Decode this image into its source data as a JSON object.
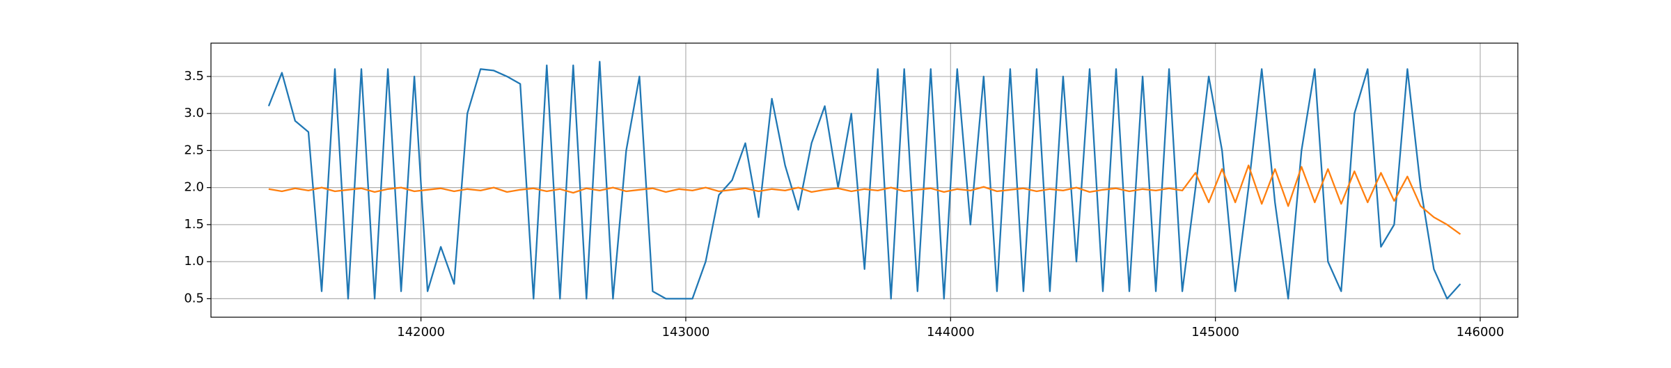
{
  "chart_data": {
    "type": "line",
    "x": [
      141425,
      141475,
      141525,
      141575,
      141625,
      141675,
      141725,
      141775,
      141825,
      141875,
      141925,
      141975,
      142025,
      142075,
      142125,
      142175,
      142225,
      142275,
      142325,
      142375,
      142425,
      142475,
      142525,
      142575,
      142625,
      142675,
      142725,
      142775,
      142825,
      142875,
      142925,
      142975,
      143025,
      143075,
      143125,
      143175,
      143225,
      143275,
      143325,
      143375,
      143425,
      143475,
      143525,
      143575,
      143625,
      143675,
      143725,
      143775,
      143825,
      143875,
      143925,
      143975,
      144025,
      144075,
      144125,
      144175,
      144225,
      144275,
      144325,
      144375,
      144425,
      144475,
      144525,
      144575,
      144625,
      144675,
      144725,
      144775,
      144825,
      144875,
      144925,
      144975,
      145025,
      145075,
      145125,
      145175,
      145225,
      145275,
      145325,
      145375,
      145425,
      145475,
      145525,
      145575,
      145625,
      145675,
      145725,
      145775,
      145825,
      145875,
      145925
    ],
    "series": [
      {
        "color": "#1f77b4",
        "values": [
          3.1,
          3.55,
          2.9,
          2.75,
          0.6,
          3.6,
          0.5,
          3.6,
          0.5,
          3.6,
          0.6,
          3.5,
          0.6,
          1.2,
          0.7,
          3.0,
          3.6,
          3.58,
          3.5,
          3.4,
          0.5,
          3.65,
          0.5,
          3.65,
          0.5,
          3.7,
          0.5,
          2.5,
          3.5,
          0.6,
          0.5,
          0.5,
          0.5,
          1.0,
          1.9,
          2.1,
          2.6,
          1.6,
          3.2,
          2.3,
          1.7,
          2.6,
          3.1,
          2.0,
          3.0,
          0.9,
          3.6,
          0.5,
          3.6,
          0.6,
          3.6,
          0.5,
          3.6,
          1.5,
          3.5,
          0.6,
          3.6,
          0.6,
          3.6,
          0.6,
          3.5,
          1.0,
          3.6,
          0.6,
          3.6,
          0.6,
          3.5,
          0.6,
          3.6,
          0.6,
          2.0,
          3.5,
          2.5,
          0.6,
          2.0,
          3.6,
          1.8,
          0.5,
          2.5,
          3.6,
          1.0,
          0.6,
          3.0,
          3.6,
          1.2,
          1.5,
          3.6,
          2.0,
          0.9,
          0.5,
          0.7
        ]
      },
      {
        "color": "#ff7f0e",
        "values": [
          1.98,
          1.95,
          1.99,
          1.96,
          2.0,
          1.95,
          1.97,
          1.99,
          1.94,
          1.98,
          2.0,
          1.95,
          1.97,
          1.99,
          1.95,
          1.98,
          1.96,
          2.0,
          1.94,
          1.97,
          1.99,
          1.95,
          1.98,
          1.93,
          1.99,
          1.96,
          2.0,
          1.95,
          1.97,
          1.99,
          1.94,
          1.98,
          1.96,
          2.0,
          1.95,
          1.97,
          1.99,
          1.95,
          1.98,
          1.96,
          2.0,
          1.94,
          1.97,
          1.99,
          1.95,
          1.98,
          1.96,
          2.0,
          1.95,
          1.97,
          1.99,
          1.94,
          1.98,
          1.96,
          2.01,
          1.95,
          1.97,
          1.99,
          1.95,
          1.98,
          1.96,
          2.0,
          1.94,
          1.97,
          1.99,
          1.95,
          1.98,
          1.96,
          1.99,
          1.96,
          2.2,
          1.8,
          2.25,
          1.8,
          2.3,
          1.78,
          2.25,
          1.75,
          2.28,
          1.8,
          2.25,
          1.78,
          2.22,
          1.8,
          2.2,
          1.82,
          2.15,
          1.75,
          1.6,
          1.5,
          1.37
        ]
      }
    ],
    "xlim": [
      141207,
      146142
    ],
    "ylim": [
      0.25,
      3.95
    ],
    "xticks": [
      142000,
      143000,
      144000,
      145000,
      146000
    ],
    "yticks": [
      0.5,
      {
        "value": 1,
        "label": "1.0"
      },
      1.5,
      {
        "value": 2,
        "label": "2.0"
      },
      2.5,
      {
        "value": 3,
        "label": "3.0"
      },
      3.5
    ],
    "grid": true
  }
}
